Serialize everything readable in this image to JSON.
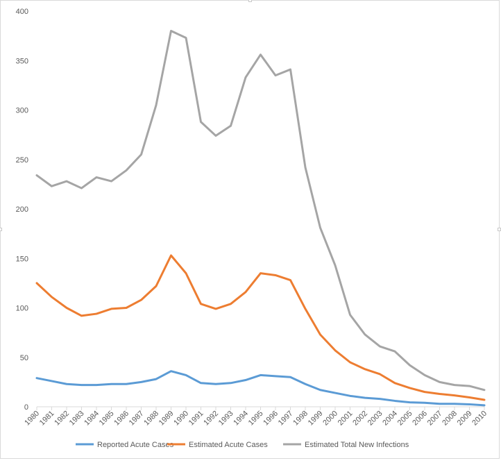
{
  "chart_data": {
    "type": "line",
    "title": "",
    "xlabel": "",
    "ylabel": "",
    "ylim": [
      0,
      400
    ],
    "yticks": [
      0,
      50,
      100,
      150,
      200,
      250,
      300,
      350,
      400
    ],
    "grid": false,
    "legend_position": "bottom",
    "categories": [
      "1980",
      "1981",
      "1982",
      "1983",
      "1984",
      "1985",
      "1986",
      "1987",
      "1988",
      "1989",
      "1990",
      "1991",
      "1992",
      "1993",
      "1994",
      "1995",
      "1996",
      "1997",
      "1998",
      "1999",
      "2000",
      "2001",
      "2002",
      "2003",
      "2004",
      "2005",
      "2006",
      "2007",
      "2008",
      "2009",
      "2010"
    ],
    "series": [
      {
        "name": "Reported Acute Cases",
        "color": "#5b9bd5",
        "values": [
          29,
          26,
          23,
          22,
          22,
          23,
          23,
          25,
          28,
          36,
          32,
          24,
          23,
          24,
          27,
          32,
          31,
          30,
          23,
          17,
          14,
          11,
          9,
          8,
          6,
          4.5,
          4,
          3,
          3,
          2.5,
          1.5
        ]
      },
      {
        "name": "Estimated Acute Cases",
        "color": "#ed7d31",
        "values": [
          125,
          111,
          100,
          92,
          94,
          99,
          100,
          108,
          122,
          153,
          135,
          104,
          99,
          104,
          116,
          135,
          133,
          128,
          99,
          73,
          57,
          45,
          38,
          33,
          24,
          19,
          15,
          13,
          11.5,
          9.5,
          7
        ]
      },
      {
        "name": "Estimated Total New Infections",
        "color": "#a5a5a5",
        "values": [
          234,
          223,
          228,
          221,
          232,
          228,
          239,
          255,
          305,
          380,
          373,
          288,
          274,
          284,
          333,
          356,
          335,
          341,
          242,
          181,
          143,
          93,
          73,
          61,
          56,
          42,
          32,
          25,
          22,
          21,
          17
        ]
      }
    ]
  }
}
